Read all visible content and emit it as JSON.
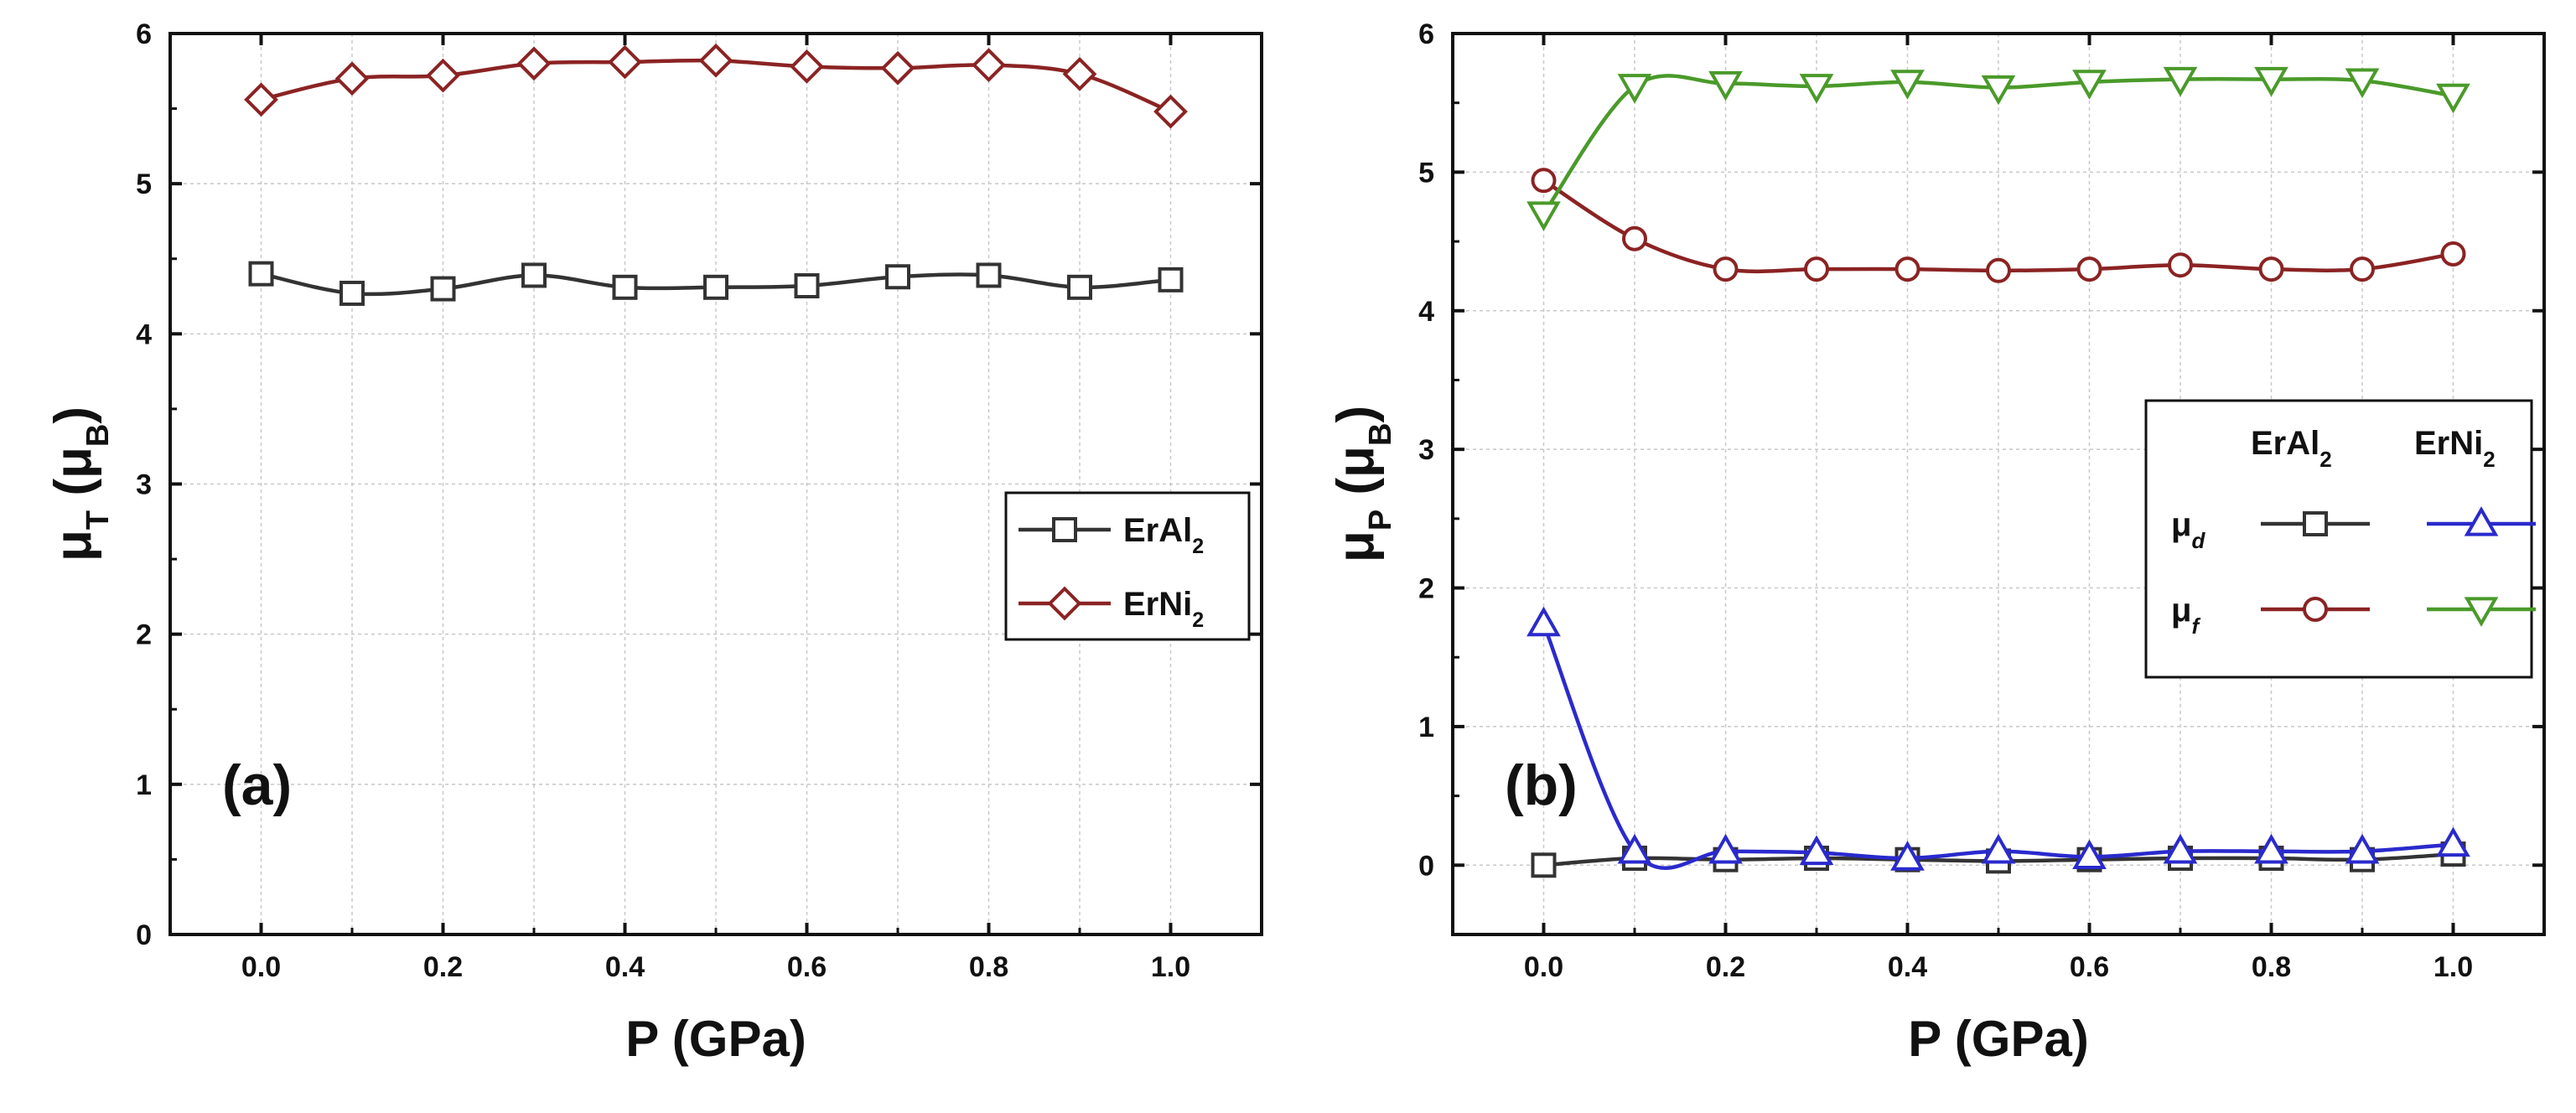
{
  "chart_data": [
    {
      "type": "line",
      "panel_label": "(a)",
      "xlabel": "P (GPa)",
      "ylabel": {
        "main": "μ",
        "sub": "T",
        "unit_open": " (μ",
        "unit_sub": "B",
        "unit_close": ")"
      },
      "xlim": [
        -0.1,
        1.1
      ],
      "ylim": [
        0,
        6
      ],
      "xticks": [
        "0.0",
        "0.2",
        "0.4",
        "0.6",
        "0.8",
        "1.0"
      ],
      "yticks": [
        "0",
        "1",
        "2",
        "3",
        "4",
        "5",
        "6"
      ],
      "grid": true,
      "legend_position": "right",
      "x": [
        0.0,
        0.1,
        0.2,
        0.3,
        0.4,
        0.5,
        0.6,
        0.7,
        0.8,
        0.9,
        1.0
      ],
      "series": [
        {
          "name": "ErAl2",
          "label_main": "ErAl",
          "label_sub": "2",
          "color": "#333333",
          "marker": "square",
          "values": [
            4.4,
            4.27,
            4.3,
            4.39,
            4.31,
            4.31,
            4.32,
            4.38,
            4.39,
            4.31,
            4.36
          ]
        },
        {
          "name": "ErNi2",
          "label_main": "ErNi",
          "label_sub": "2",
          "color": "#8b2323",
          "marker": "diamond",
          "values": [
            5.56,
            5.7,
            5.72,
            5.8,
            5.81,
            5.82,
            5.78,
            5.77,
            5.79,
            5.73,
            5.48
          ]
        }
      ]
    },
    {
      "type": "line",
      "panel_label": "(b)",
      "xlabel": "P (GPa)",
      "ylabel": {
        "main": "μ",
        "sub": "P",
        "unit_open": " (μ",
        "unit_sub": "B",
        "unit_close": ")"
      },
      "xlim": [
        -0.1,
        1.1
      ],
      "ylim": [
        -0.5,
        6
      ],
      "xticks": [
        "0.0",
        "0.2",
        "0.4",
        "0.6",
        "0.8",
        "1.0"
      ],
      "yticks": [
        "0",
        "1",
        "2",
        "3",
        "4",
        "5",
        "6"
      ],
      "grid": true,
      "legend_position": "right",
      "legend_columns": [
        {
          "main": "ErAl",
          "sub": "2"
        },
        {
          "main": "ErNi",
          "sub": "2"
        }
      ],
      "legend_rows": [
        {
          "main": "μ",
          "sub": "d"
        },
        {
          "main": "μ",
          "sub": "f"
        }
      ],
      "x": [
        0.0,
        0.1,
        0.2,
        0.3,
        0.4,
        0.5,
        0.6,
        0.7,
        0.8,
        0.9,
        1.0
      ],
      "series": [
        {
          "name": "ErAl2 μd",
          "color": "#333333",
          "marker": "square",
          "values": [
            0.0,
            0.05,
            0.04,
            0.05,
            0.04,
            0.03,
            0.04,
            0.05,
            0.05,
            0.04,
            0.08
          ]
        },
        {
          "name": "ErAl2 μf",
          "color": "#8b2323",
          "marker": "circle",
          "values": [
            4.94,
            4.52,
            4.3,
            4.3,
            4.3,
            4.29,
            4.3,
            4.33,
            4.3,
            4.3,
            4.41
          ]
        },
        {
          "name": "ErNi2 μd",
          "color": "#2a2acd",
          "marker": "triangle-up",
          "values": [
            1.74,
            0.1,
            0.1,
            0.09,
            0.05,
            0.1,
            0.06,
            0.1,
            0.1,
            0.1,
            0.15
          ]
        },
        {
          "name": "ErNi2 μf",
          "color": "#4a9a2a",
          "marker": "triangle-down",
          "values": [
            4.7,
            5.62,
            5.64,
            5.62,
            5.65,
            5.61,
            5.65,
            5.67,
            5.67,
            5.66,
            5.55
          ]
        }
      ]
    }
  ]
}
